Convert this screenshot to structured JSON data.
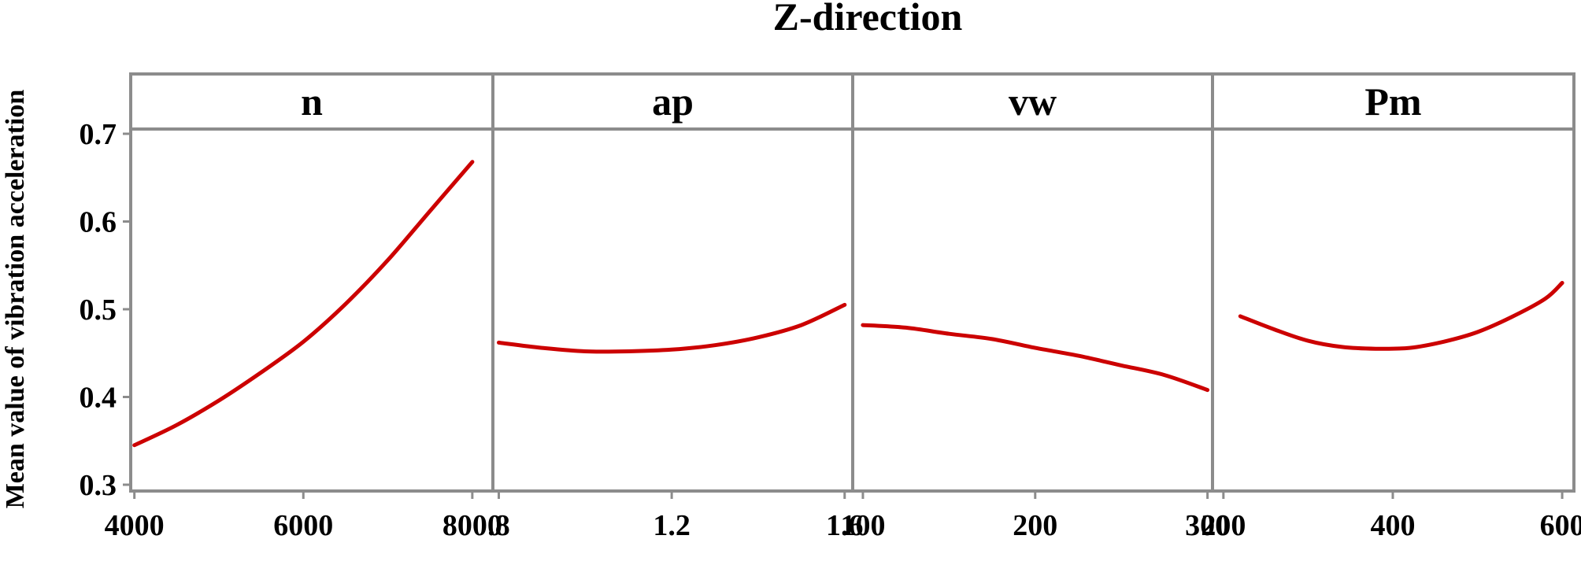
{
  "chart_data": {
    "type": "line",
    "title": "Z-direction",
    "ylabel": "Mean value of vibration acceleration",
    "ylim": [
      0.3,
      0.7
    ],
    "yticks": [
      0.3,
      0.4,
      0.5,
      0.6,
      0.7
    ],
    "ytick_labels": [
      "0.3",
      "0.4",
      "0.5",
      "0.6",
      "0.7"
    ],
    "line_color": "#cc0000",
    "frame_color": "#8c8c8c",
    "panels": [
      {
        "name": "n",
        "xlim": [
          3975,
          8225
        ],
        "xticks": [
          4000,
          6000,
          8000
        ],
        "xtick_labels": [
          "4000",
          "6000",
          "8000"
        ],
        "x": [
          4000,
          4500,
          5000,
          5500,
          6000,
          6500,
          7000,
          7500,
          8000
        ],
        "y": [
          0.345,
          0.368,
          0.396,
          0.428,
          0.463,
          0.506,
          0.556,
          0.612,
          0.668
        ]
      },
      {
        "name": "ap",
        "xlim": [
          0.79,
          1.615
        ],
        "xticks": [
          0.8,
          1.2,
          1.6
        ],
        "xtick_labels": [
          ".8",
          "1.2",
          "1.6"
        ],
        "x": [
          0.8,
          0.9,
          1.0,
          1.1,
          1.2,
          1.3,
          1.4,
          1.5,
          1.6
        ],
        "y": [
          0.462,
          0.456,
          0.452,
          0.452,
          0.454,
          0.459,
          0.468,
          0.482,
          0.505
        ]
      },
      {
        "name": "vw",
        "xlim": [
          95,
          302
        ],
        "xticks": [
          100,
          200,
          300
        ],
        "xtick_labels": [
          "100",
          "200",
          "300"
        ],
        "x": [
          100,
          125,
          150,
          175,
          200,
          225,
          250,
          275,
          300
        ],
        "y": [
          0.482,
          0.479,
          0.472,
          0.466,
          0.456,
          0.447,
          0.436,
          0.425,
          0.408
        ]
      },
      {
        "name": "Pm",
        "xlim": [
          189,
          612
        ],
        "xticks": [
          200,
          400,
          600
        ],
        "xtick_labels": [
          "200",
          "400",
          "600"
        ],
        "x": [
          220,
          260,
          300,
          340,
          380,
          420,
          460,
          500,
          540,
          580,
          600
        ],
        "y": [
          0.492,
          0.477,
          0.464,
          0.457,
          0.455,
          0.456,
          0.463,
          0.474,
          0.491,
          0.512,
          0.53
        ]
      }
    ]
  }
}
